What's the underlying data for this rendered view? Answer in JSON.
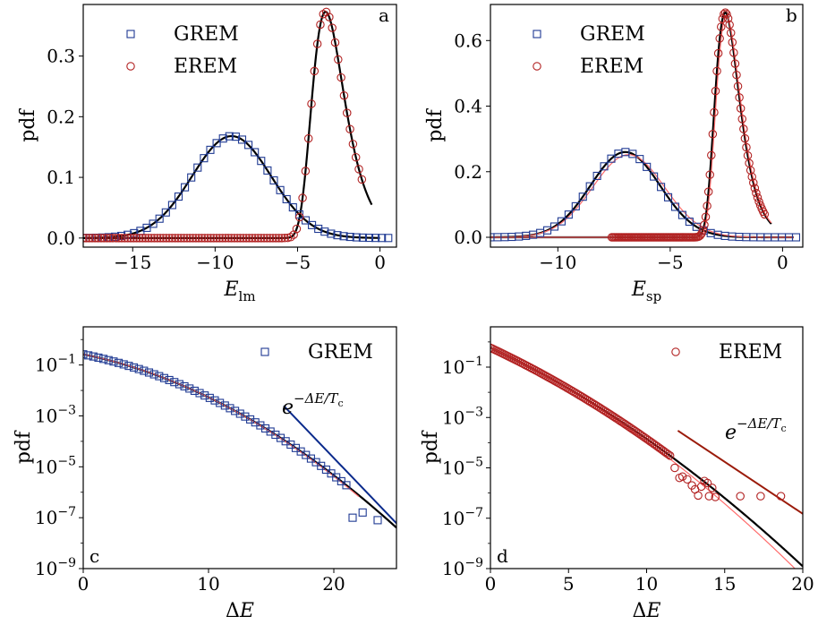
{
  "colors": {
    "grem": "#1f3a93",
    "erem": "#b22222",
    "fit": "#000000",
    "alt_fit": "#ff6b6b",
    "grem_exp_line": "#0a2a8c",
    "erem_exp_line": "#9b1b0a"
  },
  "chart_data": [
    {
      "id": "a",
      "type": "scatter",
      "panel_label": "a",
      "ylabel": "pdf",
      "xlabel_main": "E",
      "xlabel_sub": "lm",
      "xlim": [
        -18,
        1
      ],
      "ylim": [
        -0.015,
        0.385
      ],
      "xticks": [
        -15,
        -10,
        -5,
        0
      ],
      "xtick_labels": [
        "−15",
        "−10",
        "−5",
        "0"
      ],
      "yticks": [
        0.0,
        0.1,
        0.2,
        0.3
      ],
      "ytick_labels": [
        "0.0",
        "0.1",
        "0.2",
        "0.3"
      ],
      "legend": [
        {
          "label": "GREM",
          "marker": "square"
        },
        {
          "label": "EREM",
          "marker": "circle"
        }
      ],
      "series": [
        {
          "name": "GREM",
          "marker": "square",
          "kind": "gauss",
          "mu": -9,
          "sigma": 2.4,
          "amp": 0.168,
          "xmin": -18,
          "xmax": 0.5,
          "n": 49
        },
        {
          "name": "EREM",
          "marker": "circle",
          "kind": "gumbel",
          "mode": -3.3,
          "beta": 0.98,
          "amp": 0.373,
          "xmin": -18,
          "xmax": -1.1,
          "n": 95
        }
      ],
      "fits": [
        {
          "kind": "gauss",
          "mu": -9,
          "sigma": 2.4,
          "amp": 0.168,
          "xmin": -18,
          "xmax": 0,
          "role": "fit"
        },
        {
          "kind": "gumbel",
          "mode": -3.3,
          "beta": 0.98,
          "amp": 0.373,
          "xmin": -18,
          "xmax": -0.5,
          "role": "fit"
        }
      ]
    },
    {
      "id": "b",
      "type": "scatter",
      "panel_label": "b",
      "ylabel": "pdf",
      "xlabel_main": "E",
      "xlabel_sub": "sp",
      "xlim": [
        -13,
        0.9
      ],
      "ylim": [
        -0.03,
        0.71
      ],
      "xticks": [
        -10,
        -5,
        0
      ],
      "xtick_labels": [
        "−10",
        "−5",
        "0"
      ],
      "yticks": [
        0.0,
        0.2,
        0.4,
        0.6
      ],
      "ytick_labels": [
        "0.0",
        "0.2",
        "0.4",
        "0.6"
      ],
      "legend": [
        {
          "label": "GREM",
          "marker": "square"
        },
        {
          "label": "EREM",
          "marker": "circle"
        }
      ],
      "series": [
        {
          "name": "GREM",
          "marker": "square",
          "kind": "gauss",
          "mu": -7,
          "sigma": 1.55,
          "amp": 0.26,
          "xmin": -13,
          "xmax": 0.6,
          "n": 44
        },
        {
          "name": "EREM",
          "marker": "circle",
          "kind": "gumbel",
          "mode": -2.55,
          "beta": 0.54,
          "amp": 0.685,
          "xmin": -7.6,
          "xmax": -0.8,
          "n": 110
        }
      ],
      "fits": [
        {
          "kind": "gauss",
          "mu": -7,
          "sigma": 1.55,
          "amp": 0.26,
          "xmin": -13,
          "xmax": 0.5,
          "role": "fit"
        },
        {
          "kind": "gauss",
          "mu": -6.85,
          "sigma": 1.6,
          "amp": 0.252,
          "xmin": -13,
          "xmax": 0.5,
          "role": "alt_fit"
        },
        {
          "kind": "gumbel",
          "mode": -2.55,
          "beta": 0.54,
          "amp": 0.685,
          "xmin": -13,
          "xmax": -0.5,
          "role": "fit"
        },
        {
          "kind": "gumbel",
          "mode": -2.5,
          "beta": 0.54,
          "amp": 0.675,
          "xmin": -13,
          "xmax": -0.5,
          "role": "alt_fit"
        }
      ]
    },
    {
      "id": "c",
      "type": "scatter",
      "scale": "log",
      "panel_label": "c",
      "ylabel": "pdf",
      "xlabel": "ΔE",
      "xlim": [
        0,
        25
      ],
      "ylim_exp": [
        -9,
        0.5
      ],
      "xticks": [
        0,
        10,
        20
      ],
      "xtick_labels": [
        "0",
        "10",
        "20"
      ],
      "yticks_exp": [
        -1,
        -3,
        -5,
        -7,
        -9
      ],
      "legend": [
        {
          "label": "GREM",
          "marker": "square"
        }
      ],
      "annotation": {
        "base": "e",
        "exponent": "−ΔE/T",
        "exponent_sub": "c"
      },
      "series": [
        {
          "name": "GREM",
          "marker": "square",
          "kind": "quad",
          "a": -0.58,
          "b": -0.1,
          "c": -0.0069,
          "xmin": 0,
          "xmax": 21.0,
          "n": 53,
          "extra": [
            [
              21.5,
              1e-07
            ],
            [
              22.3,
              1.6e-07
            ],
            [
              23.5,
              8e-08
            ]
          ]
        }
      ],
      "fits": [
        {
          "kind": "quad",
          "a": -0.58,
          "b": -0.1,
          "c": -0.0069,
          "xmin": 0,
          "xmax": 25,
          "role": "fit"
        },
        {
          "kind": "quad",
          "a": -0.58,
          "b": -0.098,
          "c": -0.0071,
          "xmin": 0,
          "xmax": 22,
          "role": "alt_fit"
        },
        {
          "kind": "line",
          "x1": 16,
          "y1": 0.0025,
          "x2": 25,
          "y2": 6e-08,
          "role": "grem_exp_line"
        }
      ]
    },
    {
      "id": "d",
      "type": "scatter",
      "scale": "log",
      "panel_label": "d",
      "ylabel": "pdf",
      "xlabel": "ΔE",
      "xlim": [
        0,
        20
      ],
      "ylim_exp": [
        -9,
        0.6
      ],
      "xticks": [
        0,
        5,
        10,
        15,
        20
      ],
      "xtick_labels": [
        "0",
        "5",
        "10",
        "15",
        "20"
      ],
      "yticks_exp": [
        -1,
        -3,
        -5,
        -7,
        -9
      ],
      "legend": [
        {
          "label": "EREM",
          "marker": "circle"
        }
      ],
      "annotation": {
        "base": "e",
        "exponent": "−ΔE/T",
        "exponent_sub": "c"
      },
      "series": [
        {
          "name": "EREM",
          "marker": "circle",
          "kind": "quad",
          "a": -0.23,
          "b": -0.29,
          "c": -0.0072,
          "xmin": 0,
          "xmax": 11.5,
          "n": 100,
          "extra": [
            [
              11.8,
              1e-05
            ],
            [
              12.1,
              4e-06
            ],
            [
              12.3,
              4.5e-06
            ],
            [
              12.6,
              3.5e-06
            ],
            [
              12.9,
              2e-06
            ],
            [
              13.1,
              1.4e-06
            ],
            [
              13.3,
              8e-07
            ],
            [
              13.5,
              1.8e-06
            ],
            [
              13.7,
              3e-06
            ],
            [
              13.9,
              2.5e-06
            ],
            [
              14.0,
              7.5e-07
            ],
            [
              14.2,
              1.6e-06
            ],
            [
              14.4,
              7e-07
            ],
            [
              16.0,
              7.5e-07
            ],
            [
              17.3,
              7.5e-07
            ],
            [
              18.6,
              7.5e-07
            ]
          ]
        }
      ],
      "fits": [
        {
          "kind": "quad",
          "a": -0.23,
          "b": -0.29,
          "c": -0.0072,
          "xmin": 0,
          "xmax": 20,
          "role": "fit"
        },
        {
          "kind": "quad",
          "a": -0.23,
          "b": -0.29,
          "c": -0.0082,
          "xmin": 0,
          "xmax": 20,
          "role": "alt_fit"
        },
        {
          "kind": "line",
          "x1": 12,
          "y1": 0.0003,
          "x2": 20,
          "y2": 1.5e-07,
          "role": "erem_exp_line"
        }
      ]
    }
  ]
}
